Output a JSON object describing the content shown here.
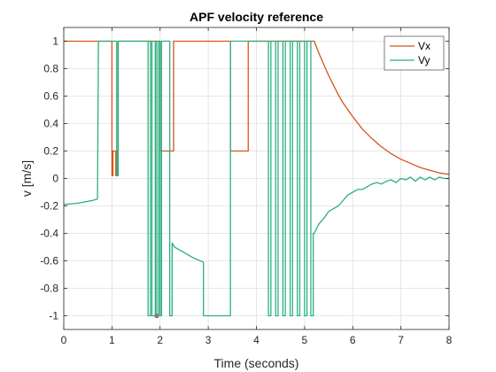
{
  "chart_data": {
    "type": "line",
    "title": "APF velocity reference",
    "xlabel": "Time (seconds)",
    "ylabel": "v [m/s]",
    "xlim": [
      0,
      8
    ],
    "ylim": [
      -1.1,
      1.1
    ],
    "xticks": [
      0,
      1,
      2,
      3,
      4,
      5,
      6,
      7,
      8
    ],
    "xtick_labels": [
      "0",
      "1",
      "2",
      "3",
      "4",
      "5",
      "6",
      "7",
      "8"
    ],
    "yticks": [
      1,
      0.8,
      0.6,
      0.4,
      0.2,
      0,
      -0.2,
      -0.4,
      -0.6,
      -0.8,
      -1
    ],
    "ytick_labels": [
      "1",
      "0.8",
      "0.6",
      "0.4",
      "0.2",
      "0",
      "-0.2",
      "-0.4",
      "-0.6",
      "-0.8",
      "-1"
    ],
    "grid": true,
    "legend_position": "top-right",
    "series": [
      {
        "name": "Vx",
        "color": "#D95319",
        "x": [
          0,
          1.0,
          1.0,
          1.02,
          1.02,
          1.08,
          1.08,
          1.12,
          1.12,
          1.13,
          1.13,
          2.0,
          2.0,
          2.28,
          2.28,
          3.46,
          3.46,
          3.83,
          3.83,
          3.86,
          3.86,
          5.2,
          5.3,
          5.4,
          5.5,
          5.6,
          5.7,
          5.8,
          5.9,
          6.0,
          6.2,
          6.4,
          6.6,
          6.8,
          7.0,
          7.2,
          7.4,
          7.6,
          7.8,
          8.0
        ],
        "y": [
          1,
          1,
          0.02,
          0.02,
          0.2,
          0.2,
          0.02,
          0.02,
          0.2,
          0.2,
          1,
          1,
          0.2,
          0.2,
          1,
          1,
          0.2,
          0.2,
          1,
          1,
          1,
          1,
          0.91,
          0.83,
          0.75,
          0.68,
          0.61,
          0.55,
          0.5,
          0.45,
          0.36,
          0.29,
          0.23,
          0.18,
          0.14,
          0.11,
          0.08,
          0.06,
          0.04,
          0.03
        ]
      },
      {
        "name": "Vy",
        "color": "#2BB07F",
        "x": [
          0,
          0.3,
          0.6,
          0.7,
          0.72,
          0.72,
          1.1,
          1.1,
          1.13,
          1.13,
          1.75,
          1.75,
          1.8,
          1.8,
          1.83,
          1.83,
          1.9,
          1.9,
          1.93,
          1.93,
          1.97,
          1.97,
          2.0,
          2.0,
          2.03,
          2.03,
          2.2,
          2.2,
          2.25,
          2.25,
          2.3,
          2.5,
          2.7,
          2.9,
          2.9,
          3.46,
          3.46,
          4.25,
          4.25,
          4.3,
          4.3,
          4.4,
          4.4,
          4.45,
          4.45,
          4.55,
          4.55,
          4.6,
          4.6,
          4.7,
          4.7,
          4.75,
          4.75,
          4.85,
          4.85,
          4.9,
          4.9,
          5.0,
          5.0,
          5.05,
          5.05,
          5.13,
          5.13,
          5.18,
          5.18,
          5.2,
          5.3,
          5.4,
          5.5,
          5.6,
          5.7,
          5.8,
          5.9,
          6.0,
          6.1,
          6.2,
          6.3,
          6.4,
          6.5,
          6.6,
          6.7,
          6.8,
          6.9,
          7.0,
          7.1,
          7.2,
          7.3,
          7.4,
          7.5,
          7.6,
          7.7,
          7.8,
          7.9,
          8.0
        ],
        "y": [
          -0.19,
          -0.18,
          -0.16,
          -0.15,
          1,
          1,
          1,
          0.02,
          0.02,
          1,
          1,
          -1,
          -1,
          1,
          1,
          -1,
          -1,
          1,
          1,
          -1,
          -1,
          1,
          1,
          -1,
          -1,
          1,
          1,
          -1,
          -1,
          -0.47,
          -0.5,
          -0.54,
          -0.58,
          -0.61,
          -1,
          -1,
          1,
          1,
          -1,
          -1,
          1,
          1,
          -1,
          -1,
          1,
          1,
          -1,
          -1,
          1,
          1,
          -1,
          -1,
          1,
          1,
          -1,
          -1,
          1,
          1,
          -1,
          -1,
          1,
          1,
          -1,
          -1,
          -0.4,
          -0.4,
          -0.33,
          -0.29,
          -0.24,
          -0.22,
          -0.2,
          -0.16,
          -0.12,
          -0.1,
          -0.08,
          -0.08,
          -0.06,
          -0.04,
          -0.03,
          -0.04,
          -0.02,
          -0.01,
          -0.03,
          0.0,
          -0.01,
          0.01,
          -0.02,
          0.01,
          -0.01,
          0.01,
          -0.01,
          0.01,
          0.0,
          0.0
        ]
      }
    ],
    "marker": {
      "x": 1.93,
      "y": -1,
      "color": "#808080"
    }
  }
}
